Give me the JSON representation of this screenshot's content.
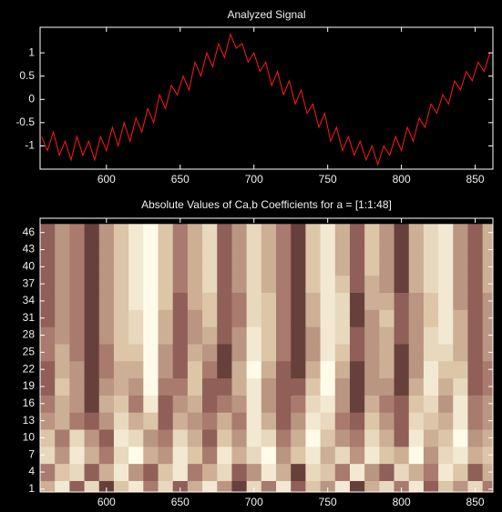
{
  "chart_data": [
    {
      "type": "line",
      "title": "Analyzed Signal",
      "x": [
        556,
        560,
        564,
        568,
        572,
        576,
        580,
        584,
        588,
        592,
        596,
        600,
        604,
        608,
        612,
        616,
        620,
        624,
        628,
        632,
        636,
        640,
        644,
        648,
        652,
        656,
        660,
        664,
        668,
        672,
        676,
        680,
        684,
        688,
        692,
        696,
        700,
        704,
        708,
        712,
        716,
        720,
        724,
        728,
        732,
        736,
        740,
        744,
        748,
        752,
        756,
        760,
        764,
        768,
        772,
        776,
        780,
        784,
        788,
        792,
        796,
        800,
        804,
        808,
        812,
        816,
        820,
        824,
        828,
        832,
        836,
        840,
        844,
        848,
        852,
        856,
        860
      ],
      "series": [
        {
          "color": "#ff1a1a",
          "values": [
            -0.8,
            -1.1,
            -0.7,
            -1.2,
            -0.9,
            -1.3,
            -0.8,
            -1.2,
            -0.9,
            -1.3,
            -0.8,
            -1.1,
            -0.6,
            -1.0,
            -0.5,
            -0.9,
            -0.4,
            -0.7,
            -0.2,
            -0.5,
            0.1,
            -0.2,
            0.3,
            0.1,
            0.5,
            0.2,
            0.8,
            0.5,
            1.0,
            0.7,
            1.2,
            0.9,
            1.4,
            1.1,
            1.2,
            0.8,
            1.0,
            0.6,
            0.8,
            0.3,
            0.6,
            0.1,
            0.4,
            -0.1,
            0.2,
            -0.3,
            -0.1,
            -0.6,
            -0.3,
            -0.9,
            -0.6,
            -1.1,
            -0.8,
            -1.2,
            -0.9,
            -1.3,
            -1.0,
            -1.4,
            -1.0,
            -1.2,
            -0.8,
            -1.1,
            -0.6,
            -0.9,
            -0.4,
            -0.6,
            -0.1,
            -0.3,
            0.1,
            -0.1,
            0.4,
            0.2,
            0.6,
            0.4,
            0.8,
            0.6,
            1.0
          ]
        }
      ],
      "xlim": [
        555,
        862
      ],
      "xticks": [
        600,
        650,
        700,
        750,
        800,
        850
      ],
      "ylim": [
        -1.5,
        1.55
      ],
      "yticks": [
        -1,
        -0.5,
        0,
        0.5,
        1
      ]
    },
    {
      "type": "heatmap",
      "title": "Absolute Values of Ca,b Coefficients for a = [1:1:48]",
      "x": [
        560,
        570,
        580,
        590,
        600,
        610,
        620,
        630,
        640,
        650,
        660,
        670,
        680,
        690,
        700,
        710,
        720,
        730,
        740,
        750,
        760,
        770,
        780,
        790,
        800,
        810,
        820,
        830,
        840,
        850,
        860
      ],
      "y": [
        1,
        4,
        7,
        10,
        13,
        16,
        19,
        22,
        25,
        28,
        31,
        34,
        37,
        40,
        43,
        46
      ],
      "values": [
        [
          0.6,
          0.9,
          0.3,
          0.8,
          0.2,
          0.7,
          0.9,
          0.4,
          0.8,
          0.3,
          0.6,
          0.9,
          0.5,
          0.2,
          0.8,
          0.4,
          0.9,
          0.3,
          0.7,
          0.5,
          0.9,
          0.2,
          0.6,
          0.8,
          0.4,
          0.9,
          0.3,
          0.7,
          0.5,
          0.8,
          0.4
        ],
        [
          0.4,
          0.7,
          0.8,
          0.3,
          0.6,
          0.9,
          0.5,
          0.3,
          0.7,
          0.9,
          0.4,
          0.6,
          0.8,
          0.3,
          0.5,
          0.9,
          0.6,
          0.2,
          0.8,
          0.7,
          0.4,
          0.9,
          0.5,
          0.3,
          0.8,
          0.6,
          0.4,
          0.9,
          0.7,
          0.3,
          0.6
        ],
        [
          0.8,
          0.5,
          0.9,
          0.6,
          0.4,
          0.8,
          1.0,
          0.6,
          0.5,
          0.9,
          0.7,
          0.4,
          0.9,
          0.6,
          0.8,
          1.0,
          0.5,
          0.7,
          0.9,
          0.6,
          0.8,
          0.5,
          0.9,
          0.7,
          0.6,
          1.0,
          0.5,
          0.8,
          0.9,
          0.6,
          0.7
        ],
        [
          0.7,
          0.4,
          0.8,
          0.5,
          0.3,
          0.9,
          0.8,
          0.5,
          0.4,
          0.8,
          0.6,
          0.3,
          0.7,
          0.5,
          0.9,
          0.8,
          0.4,
          0.6,
          1.0,
          0.7,
          0.5,
          0.4,
          0.8,
          0.6,
          0.3,
          0.9,
          0.6,
          0.7,
          1.0,
          0.5,
          0.6
        ],
        [
          0.5,
          0.6,
          0.4,
          0.3,
          0.5,
          0.8,
          0.6,
          0.7,
          0.3,
          0.6,
          0.5,
          0.4,
          0.6,
          0.4,
          0.9,
          0.6,
          0.3,
          0.5,
          0.9,
          0.8,
          0.4,
          0.3,
          0.7,
          0.5,
          0.3,
          0.8,
          0.7,
          0.6,
          0.9,
          0.4,
          0.5
        ],
        [
          0.4,
          0.6,
          0.5,
          0.2,
          0.6,
          0.7,
          0.4,
          0.9,
          0.3,
          0.5,
          0.6,
          0.3,
          0.4,
          0.5,
          0.9,
          0.5,
          0.3,
          0.4,
          0.8,
          0.9,
          0.5,
          0.2,
          0.6,
          0.4,
          0.3,
          0.7,
          0.8,
          0.5,
          0.9,
          0.4,
          0.5
        ],
        [
          0.3,
          0.7,
          0.5,
          0.2,
          0.5,
          0.6,
          0.5,
          1.0,
          0.4,
          0.4,
          0.7,
          0.3,
          0.3,
          0.6,
          0.9,
          0.5,
          0.3,
          0.3,
          0.7,
          1.0,
          0.5,
          0.2,
          0.5,
          0.5,
          0.2,
          0.6,
          0.9,
          0.6,
          0.8,
          0.3,
          0.4
        ],
        [
          0.3,
          0.6,
          0.5,
          0.2,
          0.4,
          0.6,
          0.6,
          1.0,
          0.5,
          0.3,
          0.7,
          0.4,
          0.2,
          0.6,
          1.0,
          0.6,
          0.3,
          0.2,
          0.6,
          1.0,
          0.6,
          0.2,
          0.5,
          0.6,
          0.2,
          0.5,
          0.9,
          0.7,
          0.7,
          0.3,
          0.4
        ],
        [
          0.4,
          0.6,
          0.4,
          0.2,
          0.4,
          0.7,
          0.7,
          1.0,
          0.5,
          0.3,
          0.6,
          0.5,
          0.2,
          0.5,
          0.9,
          0.7,
          0.4,
          0.2,
          0.5,
          0.9,
          0.7,
          0.3,
          0.5,
          0.6,
          0.2,
          0.5,
          0.8,
          0.8,
          0.6,
          0.3,
          0.5
        ],
        [
          0.4,
          0.5,
          0.4,
          0.2,
          0.5,
          0.7,
          0.8,
          1.0,
          0.6,
          0.3,
          0.5,
          0.6,
          0.3,
          0.5,
          0.9,
          0.7,
          0.4,
          0.2,
          0.5,
          0.9,
          0.8,
          0.3,
          0.5,
          0.6,
          0.3,
          0.5,
          0.8,
          0.9,
          0.6,
          0.3,
          0.5
        ],
        [
          0.3,
          0.5,
          0.4,
          0.2,
          0.5,
          0.7,
          0.8,
          1.0,
          0.6,
          0.3,
          0.5,
          0.7,
          0.3,
          0.4,
          0.8,
          0.7,
          0.4,
          0.2,
          0.6,
          0.9,
          0.8,
          0.2,
          0.5,
          0.7,
          0.3,
          0.5,
          0.7,
          0.9,
          0.6,
          0.3,
          0.5
        ],
        [
          0.3,
          0.5,
          0.4,
          0.2,
          0.5,
          0.7,
          0.9,
          1.0,
          0.7,
          0.3,
          0.6,
          0.7,
          0.3,
          0.4,
          0.8,
          0.7,
          0.4,
          0.2,
          0.6,
          0.9,
          0.8,
          0.2,
          0.6,
          0.6,
          0.3,
          0.5,
          0.7,
          0.9,
          0.5,
          0.3,
          0.5
        ],
        [
          0.3,
          0.5,
          0.4,
          0.2,
          0.5,
          0.7,
          0.9,
          1.0,
          0.7,
          0.4,
          0.6,
          0.8,
          0.3,
          0.5,
          0.8,
          0.6,
          0.4,
          0.2,
          0.7,
          0.9,
          0.7,
          0.3,
          0.6,
          0.5,
          0.2,
          0.6,
          0.8,
          0.9,
          0.5,
          0.3,
          0.6
        ],
        [
          0.3,
          0.5,
          0.4,
          0.2,
          0.5,
          0.7,
          0.9,
          1.0,
          0.7,
          0.4,
          0.6,
          0.8,
          0.3,
          0.5,
          0.8,
          0.6,
          0.4,
          0.2,
          0.7,
          0.9,
          0.6,
          0.3,
          0.7,
          0.5,
          0.2,
          0.6,
          0.8,
          0.9,
          0.5,
          0.3,
          0.6
        ],
        [
          0.3,
          0.5,
          0.4,
          0.2,
          0.5,
          0.7,
          0.9,
          1.0,
          0.7,
          0.4,
          0.6,
          0.8,
          0.3,
          0.5,
          0.8,
          0.6,
          0.4,
          0.2,
          0.7,
          0.9,
          0.6,
          0.3,
          0.7,
          0.5,
          0.2,
          0.6,
          0.8,
          0.9,
          0.5,
          0.3,
          0.6
        ],
        [
          0.3,
          0.5,
          0.4,
          0.2,
          0.5,
          0.7,
          0.9,
          1.0,
          0.7,
          0.4,
          0.6,
          0.8,
          0.3,
          0.5,
          0.8,
          0.6,
          0.4,
          0.2,
          0.7,
          0.9,
          0.6,
          0.3,
          0.7,
          0.5,
          0.2,
          0.6,
          0.8,
          0.9,
          0.5,
          0.3,
          0.6
        ]
      ],
      "colormap": [
        "#1a0000",
        "#9c6a62",
        "#d8c0a0",
        "#fffbe8"
      ],
      "xlim": [
        555,
        862
      ],
      "xticks": [
        600,
        650,
        700,
        750,
        800,
        850
      ],
      "ylim": [
        0.5,
        48.5
      ],
      "yticks": [
        1,
        4,
        7,
        10,
        13,
        16,
        19,
        22,
        25,
        28,
        31,
        34,
        37,
        40,
        43,
        46
      ]
    }
  ]
}
